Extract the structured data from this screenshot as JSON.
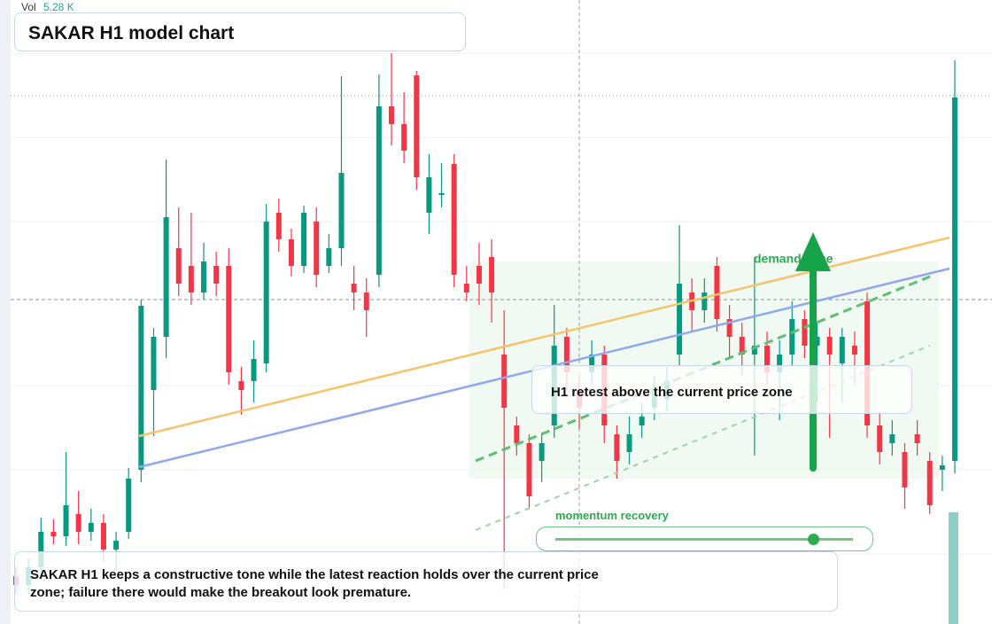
{
  "chart_data": {
    "type": "candlestick",
    "title": "SAKAR H1 model chart",
    "volume_label": "Vol",
    "volume_value": "5.28 K",
    "zone_label": "demand zone",
    "callout": "H1 retest above the current price zone",
    "indicator_label": "momentum recovery",
    "commentary": "SAKAR H1 keeps a constructive tone while the latest reaction holds over the current price zone; failure there would make the breakout look premature.",
    "up_color": "#089981",
    "down_color": "#f23645",
    "ylim": [
      0,
      704
    ],
    "open": [
      54,
      44,
      64,
      104,
      99,
      124,
      104,
      114,
      84,
      104,
      174,
      264,
      324,
      424,
      404,
      374,
      404,
      404,
      274,
      274,
      294,
      464,
      434,
      404,
      454,
      404,
      424,
      384,
      374,
      394,
      584,
      564,
      619,
      464,
      484,
      519,
      384,
      404,
      414,
      304,
      224,
      204,
      184,
      224,
      324,
      264,
      284,
      304,
      214,
      194,
      224,
      244,
      254,
      304,
      374,
      354,
      404,
      344,
      324,
      304,
      314,
      284,
      304,
      344,
      314,
      324,
      294,
      314,
      364,
      224,
      204,
      194,
      214,
      184,
      174,
      184
    ],
    "high": [
      64,
      74,
      120,
      118,
      194,
      150,
      130,
      124,
      104,
      176,
      366,
      334,
      524,
      470,
      464,
      430,
      420,
      424,
      290,
      320,
      474,
      480,
      446,
      472,
      470,
      440,
      618,
      404,
      390,
      620,
      644,
      600,
      624,
      530,
      520,
      530,
      404,
      430,
      434,
      354,
      234,
      214,
      214,
      360,
      334,
      280,
      320,
      314,
      224,
      234,
      250,
      280,
      290,
      450,
      390,
      390,
      414,
      360,
      340,
      414,
      330,
      320,
      364,
      354,
      340,
      334,
      334,
      330,
      374,
      240,
      230,
      204,
      230,
      194,
      190,
      636
    ],
    "low": [
      34,
      34,
      56,
      90,
      88,
      90,
      94,
      70,
      60,
      96,
      160,
      212,
      300,
      370,
      360,
      366,
      370,
      270,
      236,
      250,
      284,
      420,
      392,
      396,
      380,
      396,
      404,
      354,
      324,
      380,
      540,
      520,
      490,
      440,
      470,
      380,
      364,
      360,
      340,
      40,
      190,
      130,
      160,
      210,
      264,
      220,
      270,
      204,
      164,
      180,
      210,
      230,
      240,
      290,
      330,
      340,
      330,
      300,
      280,
      190,
      270,
      230,
      290,
      300,
      250,
      210,
      250,
      270,
      210,
      180,
      190,
      130,
      190,
      124,
      150,
      170
    ],
    "close": [
      44,
      64,
      104,
      99,
      134,
      104,
      114,
      84,
      94,
      164,
      359,
      324,
      459,
      384,
      374,
      409,
      384,
      284,
      264,
      299,
      454,
      434,
      404,
      464,
      394,
      424,
      509,
      374,
      354,
      584,
      564,
      534,
      504,
      504,
      486,
      394,
      374,
      384,
      374,
      244,
      204,
      144,
      204,
      314,
      284,
      244,
      304,
      224,
      184,
      214,
      234,
      264,
      274,
      384,
      354,
      374,
      344,
      324,
      304,
      314,
      284,
      304,
      344,
      314,
      324,
      304,
      324,
      304,
      224,
      194,
      214,
      154,
      204,
      134,
      179,
      594
    ]
  }
}
